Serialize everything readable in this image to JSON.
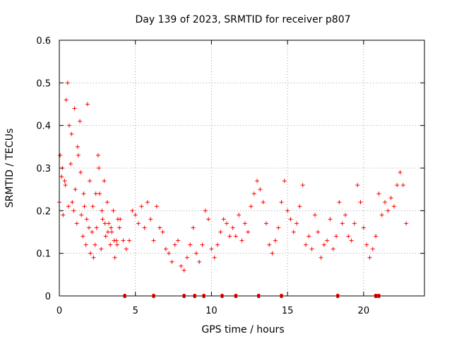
{
  "chart_data": {
    "type": "scatter",
    "title": "Day 139 of 2023, SRMTID for receiver p807",
    "xlabel": "GPS time / hours",
    "ylabel": "SRMTID / TECUs",
    "xlim": [
      0,
      24
    ],
    "ylim": [
      0,
      0.6
    ],
    "xticks": [
      0,
      5,
      10,
      15,
      20
    ],
    "xtick_labels": [
      "0",
      "5",
      "10",
      "15",
      "20"
    ],
    "yticks": [
      0,
      0.1,
      0.2,
      0.3,
      0.4,
      0.5,
      0.6
    ],
    "ytick_labels": [
      "0",
      "0.1",
      "0.2",
      "0.3",
      "0.4",
      "0.5",
      "0.6"
    ],
    "grid": true,
    "marker": "+",
    "color": "#ff0000",
    "series": [
      {
        "name": "SRMTID",
        "x": [
          0.0,
          0.2,
          0.4,
          0.6,
          0.8,
          1.0,
          1.2,
          1.4,
          1.6,
          1.8,
          2.0,
          2.2,
          2.4,
          2.6,
          2.8,
          3.0,
          3.2,
          3.4,
          3.6,
          3.8,
          4.0,
          4.2,
          4.4,
          4.6,
          4.8,
          5.0,
          5.2,
          5.4,
          5.6,
          5.8,
          6.0,
          6.2,
          6.4,
          6.6,
          6.8,
          7.0,
          7.2,
          7.4,
          7.6,
          7.8,
          8.0,
          8.2,
          8.4,
          8.6,
          8.8,
          9.0,
          9.2,
          9.4,
          9.6,
          9.8,
          10.0,
          10.2,
          10.4,
          10.6,
          10.8,
          11.0,
          11.2,
          11.4,
          11.6,
          11.8,
          12.0,
          12.2,
          12.4,
          12.6,
          12.8,
          13.0,
          13.2,
          13.4,
          13.6,
          13.8,
          14.0,
          14.2,
          14.4,
          14.6,
          14.8,
          15.0,
          15.2,
          15.4,
          15.6,
          15.8,
          16.0,
          16.2,
          16.4,
          16.6,
          16.8,
          17.0,
          17.2,
          17.4,
          17.6,
          17.8,
          18.0,
          18.2,
          18.4,
          18.6,
          18.8,
          19.0,
          19.2,
          19.4,
          19.6,
          19.8,
          20.0,
          20.2,
          20.4,
          20.6,
          20.8,
          21.0,
          21.2,
          21.4,
          21.6,
          21.8,
          22.0,
          22.2,
          22.4,
          22.6,
          22.8,
          0.05,
          0.15,
          0.25,
          0.35,
          0.45,
          0.55,
          0.65,
          0.75,
          0.85,
          0.95,
          1.05,
          1.15,
          1.25,
          1.35,
          1.45,
          1.55,
          1.65,
          1.75,
          1.85,
          1.95,
          2.05,
          2.15,
          2.25,
          2.35,
          2.45,
          2.55,
          2.65,
          2.75,
          2.85,
          2.95,
          3.05,
          3.15,
          3.25,
          3.35,
          3.45,
          3.55,
          3.65,
          3.75,
          3.85,
          3.95
        ],
        "y": [
          0.22,
          0.3,
          0.26,
          0.21,
          0.38,
          0.44,
          0.35,
          0.29,
          0.24,
          0.18,
          0.27,
          0.21,
          0.24,
          0.3,
          0.2,
          0.17,
          0.15,
          0.16,
          0.13,
          0.12,
          0.18,
          0.13,
          0.11,
          0.13,
          0.2,
          0.19,
          0.17,
          0.21,
          0.16,
          0.22,
          0.18,
          0.13,
          0.21,
          0.16,
          0.15,
          0.11,
          0.1,
          0.08,
          0.12,
          0.13,
          0.07,
          0.06,
          0.09,
          0.12,
          0.16,
          0.1,
          0.08,
          0.12,
          0.2,
          0.18,
          0.11,
          0.09,
          0.12,
          0.15,
          0.18,
          0.17,
          0.14,
          0.16,
          0.14,
          0.19,
          0.13,
          0.17,
          0.15,
          0.21,
          0.24,
          0.27,
          0.25,
          0.22,
          0.17,
          0.12,
          0.1,
          0.13,
          0.16,
          0.22,
          0.27,
          0.2,
          0.18,
          0.15,
          0.17,
          0.21,
          0.26,
          0.12,
          0.14,
          0.11,
          0.19,
          0.15,
          0.09,
          0.12,
          0.13,
          0.18,
          0.11,
          0.14,
          0.22,
          0.17,
          0.19,
          0.14,
          0.13,
          0.17,
          0.26,
          0.22,
          0.16,
          0.12,
          0.09,
          0.11,
          0.14,
          0.24,
          0.19,
          0.22,
          0.2,
          0.23,
          0.21,
          0.26,
          0.29,
          0.26,
          0.17,
          0.33,
          0.28,
          0.19,
          0.27,
          0.46,
          0.5,
          0.4,
          0.31,
          0.22,
          0.2,
          0.25,
          0.17,
          0.33,
          0.41,
          0.19,
          0.14,
          0.21,
          0.12,
          0.45,
          0.16,
          0.1,
          0.15,
          0.09,
          0.12,
          0.16,
          0.33,
          0.24,
          0.11,
          0.18,
          0.27,
          0.14,
          0.22,
          0.17,
          0.12,
          0.15,
          0.2,
          0.09,
          0.13,
          0.18,
          0.16
        ]
      }
    ],
    "baseline_markers_x": [
      4.3,
      6.2,
      8.2,
      8.9,
      9.5,
      10.7,
      11.6,
      13.1,
      14.6,
      18.3,
      20.8,
      21.0
    ]
  }
}
